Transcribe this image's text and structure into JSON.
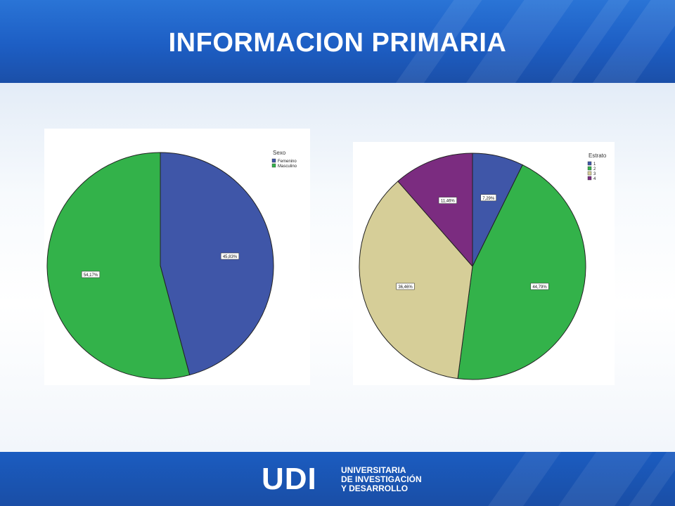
{
  "page": {
    "title": "INFORMACION PRIMARIA"
  },
  "footer": {
    "logo_mark": "UDI",
    "logo_lines": [
      "UNIVERSITARIA",
      "DE INVESTIGACIÓN",
      "Y DESARROLLO"
    ]
  },
  "chart_data": [
    {
      "type": "pie",
      "legend_title": "Sexo",
      "legend_position": "top-right",
      "categories": [
        "Femenino",
        "Masculino"
      ],
      "values": [
        45.83,
        54.17
      ],
      "value_labels": [
        "45,83%",
        "54,17%"
      ],
      "colors": [
        "#3f56a8",
        "#33b24a"
      ]
    },
    {
      "type": "pie",
      "legend_title": "Estrato",
      "legend_position": "top-right",
      "categories": [
        "1",
        "2",
        "3",
        "4"
      ],
      "values": [
        7.29,
        44.79,
        36.46,
        11.46
      ],
      "value_labels": [
        "7,29%",
        "44,79%",
        "36,46%",
        "11,46%"
      ],
      "colors": [
        "#3f56a8",
        "#33b24a",
        "#d6ce98",
        "#7b2c80"
      ]
    }
  ]
}
